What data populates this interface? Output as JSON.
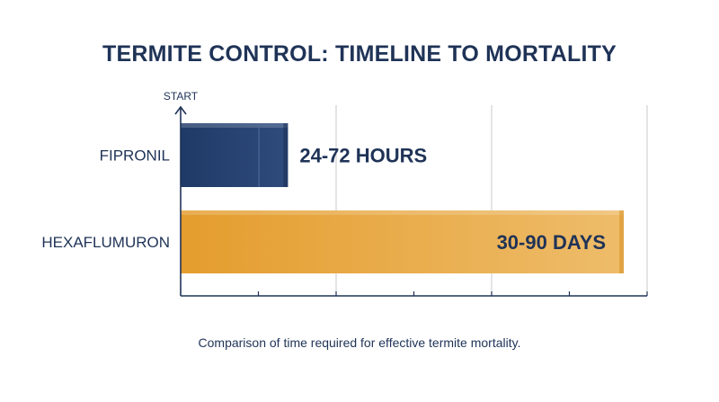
{
  "title": "TERMITE CONTROL: TIMELINE TO MORTALITY",
  "caption": "Comparison of time required for effective termite mortality.",
  "colors": {
    "text": "#1f3357",
    "fipronil": "#243f6d",
    "hexaflumuron": "#e6a238",
    "grid": "#c8c8c8",
    "axis": "#1f3357"
  },
  "chart_data": {
    "type": "bar",
    "orientation": "horizontal",
    "axis_origin_label": "START",
    "categories": [
      "FIPRONIL",
      "HEXAFLUMURON"
    ],
    "values": [
      0.23,
      0.95
    ],
    "data_labels": [
      "24-72 HOURS",
      "30-90 DAYS"
    ],
    "xlim": [
      0,
      1
    ],
    "grid": true,
    "legend": "none"
  }
}
